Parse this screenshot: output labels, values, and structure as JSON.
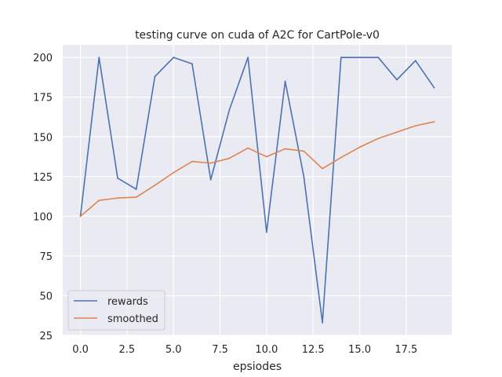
{
  "chart_data": {
    "type": "line",
    "title": "testing curve on cuda of A2C for CartPole-v0",
    "xlabel": "epsiodes",
    "ylabel": "",
    "xlim": [
      -0.95,
      19.95
    ],
    "ylim": [
      25,
      208
    ],
    "x_ticks": [
      0.0,
      2.5,
      5.0,
      7.5,
      10.0,
      12.5,
      15.0,
      17.5
    ],
    "x_tick_labels": [
      "0.0",
      "2.5",
      "5.0",
      "7.5",
      "10.0",
      "12.5",
      "15.0",
      "17.5"
    ],
    "y_ticks": [
      25,
      50,
      75,
      100,
      125,
      150,
      175,
      200
    ],
    "y_tick_labels": [
      "25",
      "50",
      "75",
      "100",
      "125",
      "150",
      "175",
      "200"
    ],
    "grid": true,
    "legend_position": "lower-left",
    "x": [
      0,
      1,
      2,
      3,
      4,
      5,
      6,
      7,
      8,
      9,
      10,
      11,
      12,
      13,
      14,
      15,
      16,
      17,
      18,
      19
    ],
    "series": [
      {
        "name": "rewards",
        "color": "#4c72b0",
        "values": [
          100,
          200,
          124,
          117,
          188,
          200,
          196,
          123,
          167,
          200,
          90,
          185,
          125,
          33,
          200,
          200,
          200,
          186,
          198,
          181
        ]
      },
      {
        "name": "smoothed",
        "color": "#dd8452",
        "values": [
          100,
          110,
          111.5,
          112,
          119.5,
          127.5,
          134.5,
          133.5,
          136.5,
          143,
          137.5,
          142.5,
          141,
          130,
          137,
          143.5,
          149,
          153,
          157,
          159.5
        ]
      }
    ]
  }
}
